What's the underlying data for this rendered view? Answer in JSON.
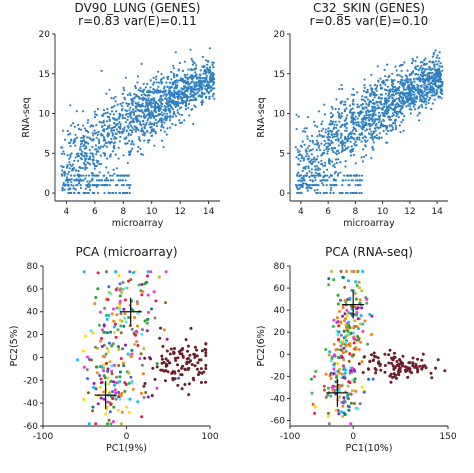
{
  "chart_data": [
    {
      "type": "scatter",
      "title": "DV90_LUNG (GENES)",
      "subtitle": "r=0.83 var(E)=0.11",
      "xlabel": "microarray",
      "ylabel": "RNA-seq",
      "xlim": [
        3.2,
        14.8
      ],
      "ylim": [
        -1,
        20
      ],
      "xticks": [
        4,
        6,
        8,
        10,
        12,
        14
      ],
      "yticks": [
        0,
        5,
        10,
        15,
        20
      ],
      "color": "#2f7fc1",
      "trend": {
        "x": [
          4,
          6,
          8,
          10,
          12,
          14
        ],
        "y": [
          3.0,
          6.0,
          8.5,
          10.6,
          12.5,
          14.2
        ]
      },
      "y_floor_values": [
        0,
        1,
        1.6,
        2.2
      ]
    },
    {
      "type": "scatter",
      "title": "C32_SKIN (GENES)",
      "subtitle": "r=0.85 var(E)=0.10",
      "xlabel": "microarray",
      "ylabel": "RNA-seq",
      "xlim": [
        3.2,
        14.8
      ],
      "ylim": [
        -1,
        20
      ],
      "xticks": [
        4,
        6,
        8,
        10,
        12,
        14
      ],
      "yticks": [
        0,
        5,
        10,
        15,
        20
      ],
      "color": "#2f7fc1",
      "trend": {
        "x": [
          4,
          6,
          8,
          10,
          12,
          14
        ],
        "y": [
          3.0,
          6.2,
          8.7,
          10.8,
          12.7,
          14.4
        ]
      },
      "y_floor_values": [
        0,
        1,
        1.6,
        2.2
      ]
    },
    {
      "type": "scatter",
      "title": "PCA (microarray)",
      "xlabel": "PC1(9%)",
      "ylabel": "PC2(5%)",
      "xlim": [
        -100,
        100
      ],
      "ylim": [
        -60,
        80
      ],
      "xticks": [
        -100,
        0,
        100
      ],
      "xtick_labels": [
        "-100",
        "0",
        "100"
      ],
      "yticks": [
        -60,
        -40,
        -20,
        0,
        20,
        40,
        60,
        80
      ],
      "crosshairs": [
        {
          "x": 5,
          "y": 40
        },
        {
          "x": -25,
          "y": -33
        }
      ],
      "clusters": [
        {
          "cx": 5,
          "cy": 30,
          "sx": 18,
          "sy": 28,
          "n": 140
        },
        {
          "cx": -18,
          "cy": -30,
          "sx": 14,
          "sy": 14,
          "n": 90
        },
        {
          "cx": -30,
          "cy": 10,
          "sx": 10,
          "sy": 25,
          "n": 40
        },
        {
          "cx": 65,
          "cy": -5,
          "sx": 20,
          "sy": 11,
          "n": 110,
          "color": "#6b1e2a"
        }
      ]
    },
    {
      "type": "scatter",
      "title": "PCA (RNA-seq)",
      "xlabel": "PC1(10%)",
      "ylabel": "PC2(6%)",
      "xlim": [
        -100,
        150
      ],
      "ylim": [
        -65,
        80
      ],
      "xticks": [
        -100,
        0,
        150
      ],
      "xtick_labels": [
        "-100",
        "0",
        "150"
      ],
      "yticks": [
        -60,
        -40,
        -20,
        0,
        20,
        40,
        60,
        80
      ],
      "crosshairs": [
        {
          "x": 0,
          "y": 45
        },
        {
          "x": -25,
          "y": -35
        }
      ],
      "clusters": [
        {
          "cx": -5,
          "cy": 35,
          "sx": 14,
          "sy": 25,
          "n": 140
        },
        {
          "cx": -20,
          "cy": -30,
          "sx": 20,
          "sy": 15,
          "n": 100
        },
        {
          "cx": -15,
          "cy": 0,
          "sx": 12,
          "sy": 18,
          "n": 50
        },
        {
          "cx": 70,
          "cy": -10,
          "sx": 28,
          "sy": 6,
          "n": 110,
          "color": "#6b1e2a"
        }
      ]
    }
  ],
  "palette": [
    "#e6194b",
    "#3cb44b",
    "#4363d8",
    "#f58231",
    "#911eb4",
    "#46f0f0",
    "#f032e6",
    "#bcbd22",
    "#9a6324",
    "#808080",
    "#ffd700",
    "#008080",
    "#00bfff",
    "#ff7f0e",
    "#2ca02c"
  ]
}
